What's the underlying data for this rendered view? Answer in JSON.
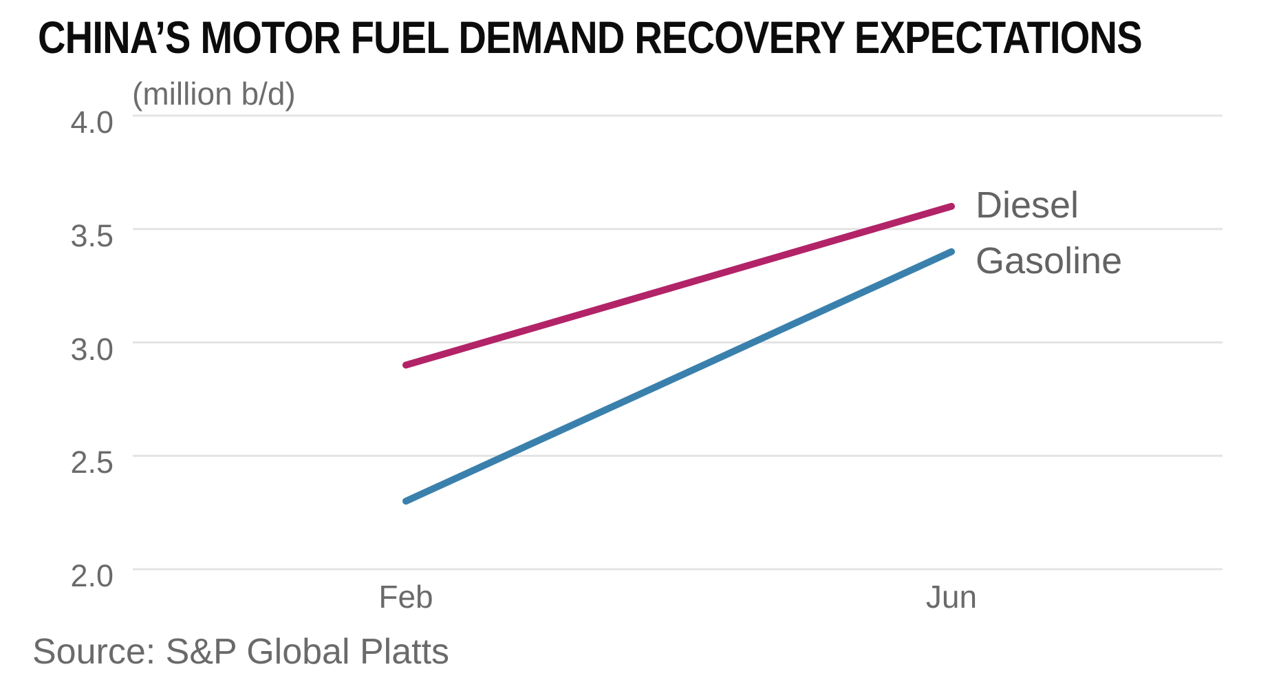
{
  "title": "CHINA’S MOTOR FUEL DEMAND RECOVERY EXPECTATIONS",
  "colors": {
    "diesel_line": "#b22368",
    "gasoline_line": "#3a80ad",
    "gridline": "#e4e4e4",
    "axis_text": "#6a6a6a",
    "title_text": "#0c0c0c"
  },
  "chart_data": {
    "type": "line",
    "title": "CHINA’S MOTOR FUEL DEMAND RECOVERY EXPECTATIONS",
    "ylabel": "(million b/d)",
    "xlabel": "",
    "x_categories": [
      "Feb",
      "Jun"
    ],
    "yticks": [
      4.0,
      3.5,
      3.0,
      2.5,
      2.0
    ],
    "ytick_labels": [
      "4.0",
      "3.5",
      "3.0",
      "2.5",
      "2.0"
    ],
    "ylim": [
      2.0,
      4.0
    ],
    "grid": "horizontal",
    "legend_position": "right-end-of-line-labels",
    "series": [
      {
        "name": "Diesel",
        "color": "#b22368",
        "values": [
          2.9,
          3.6
        ]
      },
      {
        "name": "Gasoline",
        "color": "#3a80ad",
        "values": [
          2.3,
          3.4
        ]
      }
    ],
    "source": "Source: S&P Global Platts"
  }
}
